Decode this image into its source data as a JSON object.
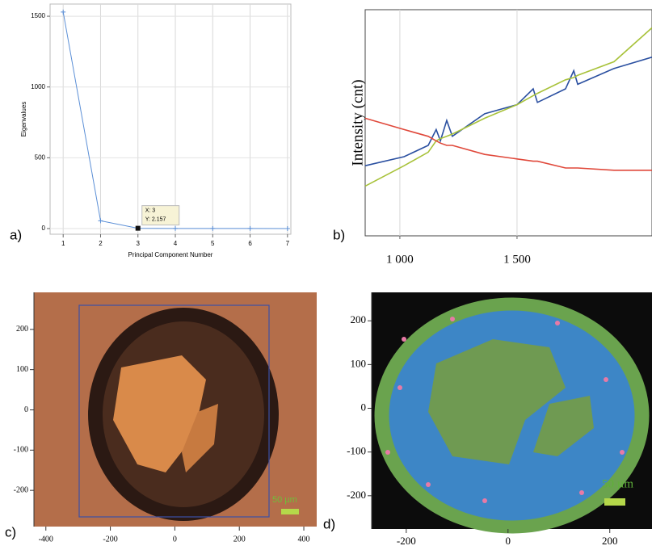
{
  "chart_data": [
    {
      "type": "line",
      "panel_label": "a)",
      "y_label": "Eigenvalues",
      "x_label": "Principal Component Number",
      "x": [
        1,
        2,
        3,
        4,
        5,
        6,
        7
      ],
      "values": [
        1530,
        55,
        2.157,
        0.8,
        0.5,
        0.3,
        0.2
      ],
      "color": "#5b8fd6",
      "xlim": [
        0.65,
        7.09
      ],
      "ylim": [
        -40,
        1586
      ],
      "xticks": [
        1,
        2,
        3,
        4,
        5,
        6,
        7
      ],
      "yticks": [
        0,
        500,
        1000,
        1500
      ],
      "grid": true,
      "highlight_index": 2,
      "tooltip": [
        "X: 3",
        "Y: 2.157"
      ]
    },
    {
      "type": "line",
      "panel_label": "b)",
      "y_label": "Intensity (cnt)",
      "x": [
        852,
        1018,
        1121,
        1155,
        1173,
        1200,
        1224,
        1362,
        1500,
        1569,
        1587,
        1707,
        1742,
        1759,
        1914,
        2076
      ],
      "series": [
        {
          "color": "#2a4fa0",
          "values": [
            31,
            35,
            40,
            47,
            42,
            51,
            44,
            54,
            58,
            65,
            59,
            65,
            73,
            67,
            74,
            79
          ]
        },
        {
          "color": "#a8c23a",
          "values": [
            22,
            31,
            37,
            42,
            43,
            44,
            45,
            52,
            58,
            62,
            63,
            69,
            70,
            71,
            77,
            92
          ]
        },
        {
          "color": "#e0483a",
          "values": [
            52,
            47,
            44,
            42,
            41,
            40,
            40,
            36,
            34,
            33,
            33,
            30,
            30,
            30,
            29,
            29
          ]
        }
      ],
      "xlim": [
        852,
        2076
      ],
      "ylim": [
        0,
        100
      ],
      "xticks": [
        {
          "value": 1000,
          "label": "1 000"
        },
        {
          "value": 1500,
          "label": "1 500"
        }
      ],
      "grid": true
    },
    {
      "type": "image",
      "panel_label": "c)",
      "scale_label": "50 µm",
      "xlim": [
        -437,
        440
      ],
      "ylim": [
        -290,
        292
      ],
      "xticks": [
        -400,
        -200,
        0,
        200,
        400
      ],
      "yticks": [
        -200,
        -100,
        0,
        100,
        200
      ]
    },
    {
      "type": "image",
      "panel_label": "d)",
      "scale_label": "50 µm",
      "xlim": [
        -268,
        283
      ],
      "ylim": [
        -276,
        265
      ],
      "xticks": [
        -200,
        0,
        200
      ],
      "yticks": [
        -200,
        -100,
        0,
        100,
        200
      ]
    }
  ]
}
